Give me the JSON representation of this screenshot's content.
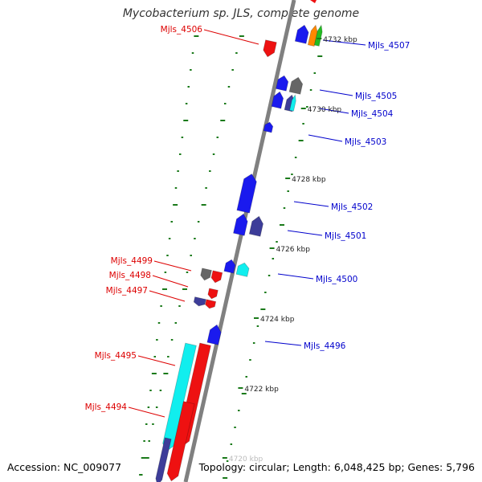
{
  "title": "Mycobacterium sp. JLS, complete genome",
  "accession_label": "Accession: NC_009077",
  "topology_label": "Topology: circular; Length: 6,048,425 bp; Genes: 5,796",
  "colors": {
    "backbone": "#808080",
    "tick": "#1a7a1a",
    "forward_label": "#0000cc",
    "reverse_label": "#dd0000",
    "gene_blue": "#1a1aee",
    "gene_red": "#ee1111",
    "gene_cyan": "#11eeee",
    "gene_gray": "#666666",
    "gene_navy": "#3d3d99",
    "gene_orange": "#ff8800",
    "gene_green": "#22bb22"
  },
  "kbp_labels": [
    "4732 kbp",
    "4730 kbp",
    "4728 kbp",
    "4726 kbp",
    "4724 kbp",
    "4722 kbp",
    "4720 kbp"
  ],
  "forward_gene_labels": [
    "Mjls_4507",
    "Mjls_4505",
    "Mjls_4504",
    "Mjls_4503",
    "Mjls_4502",
    "Mjls_4501",
    "Mjls_4500",
    "Mjls_4496"
  ],
  "reverse_gene_labels": [
    "Mjls_4506",
    "Mjls_4499",
    "Mjls_4498",
    "Mjls_4497",
    "Mjls_4495",
    "Mjls_4494"
  ]
}
